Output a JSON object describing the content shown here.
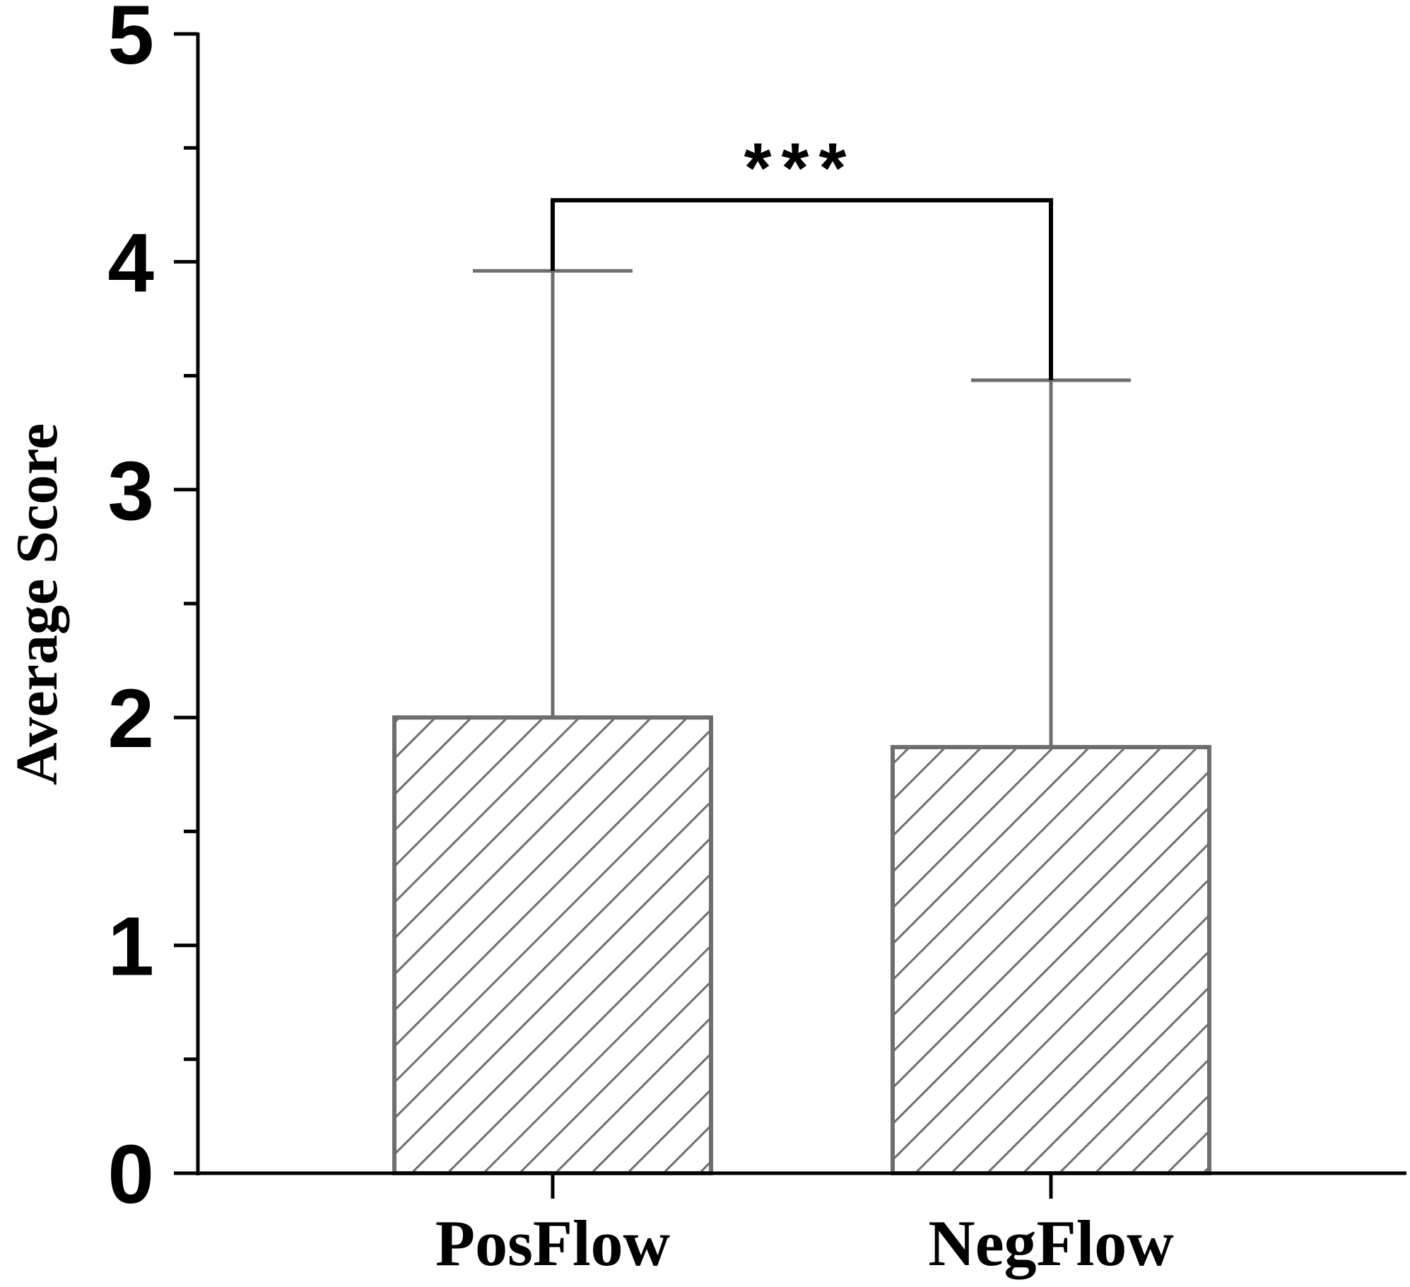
{
  "chart_data": {
    "type": "bar",
    "categories": [
      "PosFlow",
      "NegFlow"
    ],
    "values": [
      2.0,
      1.87
    ],
    "error_upper": [
      3.96,
      3.48
    ],
    "ylabel": "Average Score",
    "ylim": [
      0,
      5
    ],
    "yticks_major": [
      0,
      1,
      2,
      3,
      4,
      5
    ],
    "yticks_minor": [
      0.5,
      1.5,
      2.5,
      3.5,
      4.5
    ],
    "significance": {
      "label": "***",
      "between": [
        "PosFlow",
        "NegFlow"
      ],
      "bracket_y": 4.27
    },
    "bar_fill": "hatched",
    "bar_stroke": "#6e6e6e",
    "grid": false,
    "legend": "none"
  }
}
